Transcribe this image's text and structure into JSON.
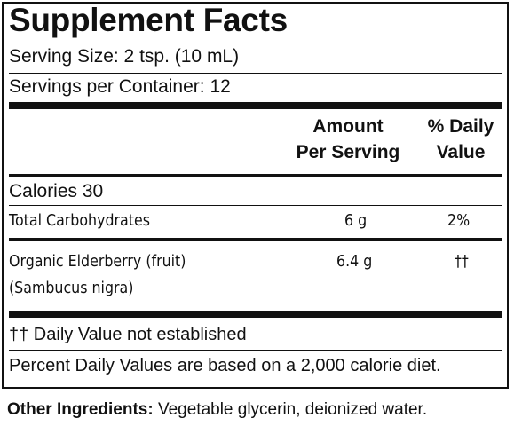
{
  "title": "Supplement Facts",
  "serving_size": "Serving Size: 2 tsp. (10 mL)",
  "servings_per_container": "Servings per Container: 12",
  "columns": {
    "amount_line1": "Amount",
    "amount_line2": "Per Serving",
    "dv_line1": "% Daily",
    "dv_line2": "Value"
  },
  "calories": "Calories  30",
  "rows": [
    {
      "name": "Total Carbohydrates",
      "amount": "6 g",
      "dv": "2%"
    },
    {
      "name_line1": "Organic Elderberry (fruit)",
      "name_line2": "(Sambucus nigra)",
      "amount": "6.4 g",
      "dv": "††"
    }
  ],
  "footnotes": {
    "daggers": "†† Daily Value not established",
    "percent": "Percent Daily Values are based on a 2,000 calorie diet."
  },
  "other_ingredients": {
    "label": "Other Ingredients:",
    "text": " Vegetable glycerin, deionized water."
  }
}
